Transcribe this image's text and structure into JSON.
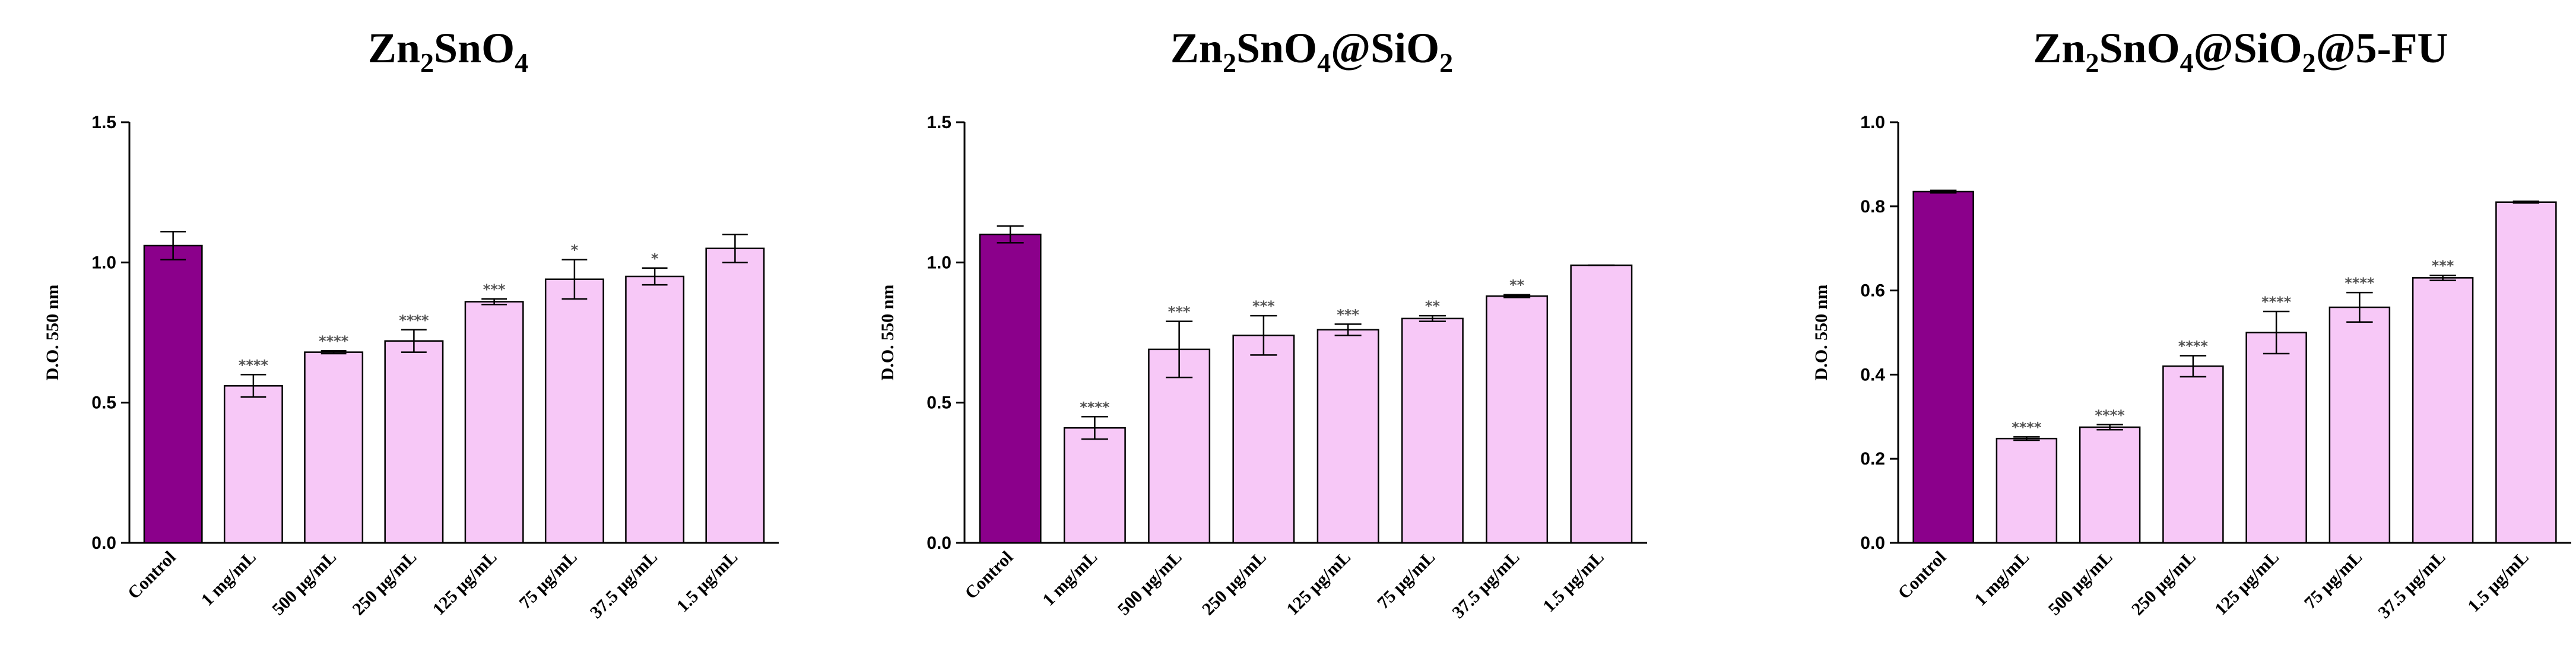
{
  "colors": {
    "control": "#8b008b",
    "treatment": "#f7c8f7",
    "stroke": "#000000"
  },
  "chart_data": [
    {
      "type": "bar",
      "title_parts": [
        {
          "text": "Zn",
          "sub": false
        },
        {
          "text": "2",
          "sub": true
        },
        {
          "text": "SnO",
          "sub": false
        },
        {
          "text": "4",
          "sub": true
        }
      ],
      "ylabel": "D.O. 550 nm",
      "ylim": [
        0,
        1.5
      ],
      "yticks": [
        0.0,
        0.5,
        1.0,
        1.5
      ],
      "ytick_labels": [
        "0.0",
        "0.5",
        "1.0",
        "1.5"
      ],
      "categories": [
        "Control",
        "1 mg/mL",
        "500 µg/mL",
        "250 µg/mL",
        "125 µg/mL",
        "75 µg/mL",
        "37.5 µg/mL",
        "1.5 µg/mL"
      ],
      "values": [
        1.06,
        0.56,
        0.68,
        0.72,
        0.86,
        0.94,
        0.95,
        1.05
      ],
      "errors": [
        0.05,
        0.04,
        0.005,
        0.04,
        0.01,
        0.07,
        0.03,
        0.05
      ],
      "significance": [
        "",
        "****",
        "****",
        "****",
        "***",
        "*",
        "*",
        ""
      ]
    },
    {
      "type": "bar",
      "title_parts": [
        {
          "text": "Zn",
          "sub": false
        },
        {
          "text": "2",
          "sub": true
        },
        {
          "text": "SnO",
          "sub": false
        },
        {
          "text": "4",
          "sub": true
        },
        {
          "text": "@SiO",
          "sub": false
        },
        {
          "text": "2",
          "sub": true
        }
      ],
      "ylabel": "D.O. 550 nm",
      "ylim": [
        0,
        1.5
      ],
      "yticks": [
        0.0,
        0.5,
        1.0,
        1.5
      ],
      "ytick_labels": [
        "0.0",
        "0.5",
        "1.0",
        "1.5"
      ],
      "categories": [
        "Control",
        "1 mg/mL",
        "500 µg/mL",
        "250 µg/mL",
        "125 µg/mL",
        "75 µg/mL",
        "37.5 µg/mL",
        "1.5 µg/mL"
      ],
      "values": [
        1.1,
        0.41,
        0.69,
        0.74,
        0.76,
        0.8,
        0.88,
        0.99
      ],
      "errors": [
        0.03,
        0.04,
        0.1,
        0.07,
        0.02,
        0.01,
        0.005,
        0.0
      ],
      "significance": [
        "",
        "****",
        "***",
        "***",
        "***",
        "**",
        "**",
        ""
      ]
    },
    {
      "type": "bar",
      "title_parts": [
        {
          "text": "Zn",
          "sub": false
        },
        {
          "text": "2",
          "sub": true
        },
        {
          "text": "SnO",
          "sub": false
        },
        {
          "text": "4",
          "sub": true
        },
        {
          "text": "@SiO",
          "sub": false
        },
        {
          "text": "2",
          "sub": true
        },
        {
          "text": "@5-FU",
          "sub": false
        }
      ],
      "ylabel": "D.O. 550 nm",
      "ylim": [
        0,
        1.0
      ],
      "yticks": [
        0.0,
        0.2,
        0.4,
        0.6,
        0.8,
        1.0
      ],
      "ytick_labels": [
        "0.0",
        "0.2",
        "0.4",
        "0.6",
        "0.8",
        "1.0"
      ],
      "categories": [
        "Control",
        "1 mg/mL",
        "500 µg/mL",
        "250 µg/mL",
        "125 µg/mL",
        "75 µg/mL",
        "37.5 µg/mL",
        "1.5 µg/mL"
      ],
      "values": [
        0.835,
        0.248,
        0.275,
        0.42,
        0.5,
        0.56,
        0.63,
        0.81
      ],
      "errors": [
        0.003,
        0.004,
        0.006,
        0.025,
        0.05,
        0.035,
        0.006,
        0.002
      ],
      "significance": [
        "",
        "****",
        "****",
        "****",
        "****",
        "****",
        "***",
        ""
      ]
    }
  ]
}
